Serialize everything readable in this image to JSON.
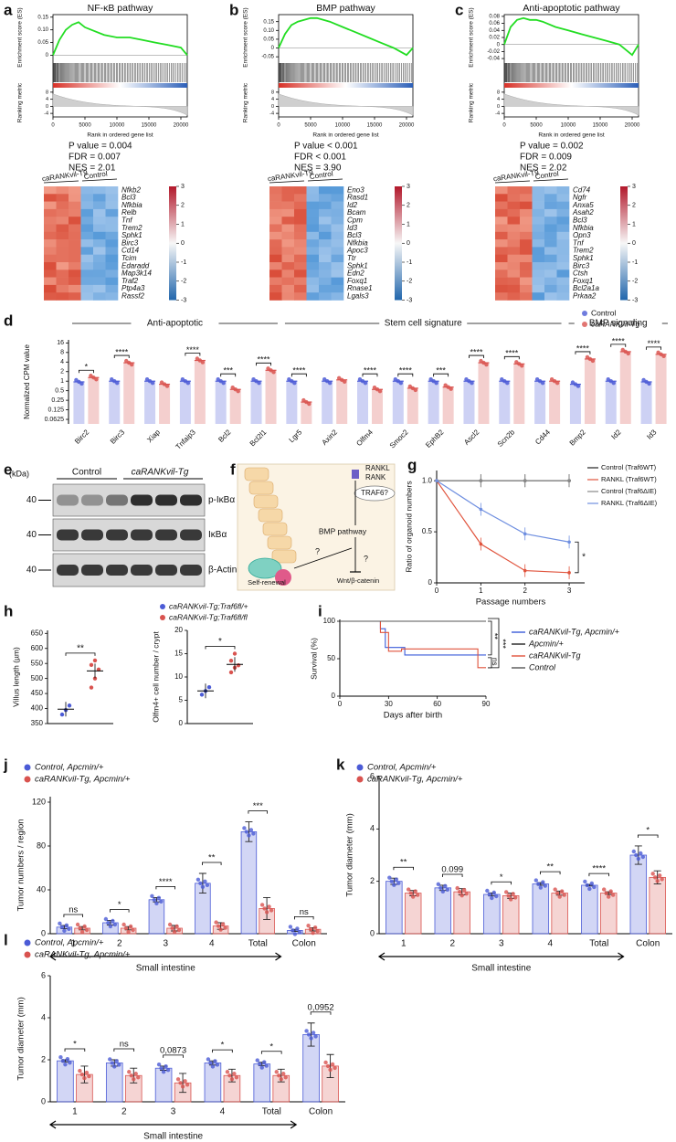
{
  "chart_data": [
    {
      "type": "gsea",
      "panel": "a",
      "title": "NF-κB pathway",
      "ylabel": "Enrichment score (ES)",
      "ylabel2": "Ranking metric",
      "xlabel": "Rank in ordered gene list",
      "x": [
        0,
        1000,
        2000,
        3000,
        4000,
        5000,
        6000,
        8000,
        10000,
        12000,
        14000,
        16000,
        18000,
        20000,
        21000
      ],
      "es": [
        0,
        0.06,
        0.1,
        0.12,
        0.13,
        0.11,
        0.1,
        0.08,
        0.07,
        0.07,
        0.06,
        0.05,
        0.04,
        0.03,
        0
      ],
      "xlim": [
        0,
        21000
      ],
      "xticks": [
        0,
        5000,
        10000,
        15000,
        20000
      ],
      "ylim": [
        -0.02,
        0.16
      ],
      "yticks": [
        0,
        0.05,
        {
          "value": 0.1,
          "label": "0.10"
        },
        0.15
      ],
      "y2lim": [
        -6,
        10
      ],
      "y2ticks": [
        8,
        4,
        0,
        -4
      ],
      "stats": [
        "P value = 0.004",
        "FDR = 0.007",
        "NES = 2.01"
      ],
      "groups": [
        "caRANKvil-T9",
        "Control"
      ],
      "genes": [
        "Nfkb2",
        "Bcl3",
        "Nfkbia",
        "Relb",
        "Tnf",
        "Trem2",
        "Sphk1",
        "Birc3",
        "Cd14",
        "Tcim",
        "Edaradd",
        "Map3k14",
        "Traf2",
        "Ptp4a3",
        "Rassf2"
      ],
      "clim": [
        -3,
        3
      ],
      "cticks": [
        3,
        2,
        1,
        0,
        -1,
        -2,
        -3
      ]
    },
    {
      "type": "gsea",
      "panel": "b",
      "title": "BMP pathway",
      "ylabel": "Enrichment score (ES)",
      "ylabel2": "Ranking metric",
      "xlabel": "Rank in ordered gene list",
      "x": [
        0,
        1000,
        2000,
        3000,
        4000,
        5000,
        6000,
        8000,
        10000,
        12000,
        14000,
        16000,
        18000,
        20000,
        21000
      ],
      "es": [
        0,
        0.08,
        0.13,
        0.15,
        0.16,
        0.17,
        0.17,
        0.15,
        0.12,
        0.09,
        0.06,
        0.03,
        0,
        -0.04,
        0
      ],
      "xlim": [
        0,
        21000
      ],
      "xticks": [
        0,
        5000,
        10000,
        15000,
        20000
      ],
      "ylim": [
        -0.07,
        0.19
      ],
      "yticks": [
        -0.05,
        0,
        0.05,
        {
          "value": 0.1,
          "label": "0.10"
        },
        0.15
      ],
      "y2lim": [
        -6,
        10
      ],
      "y2ticks": [
        8,
        4,
        0,
        -4
      ],
      "stats": [
        "P value < 0.001",
        "FDR < 0.001",
        "NES = 3.90"
      ],
      "groups": [
        "caRANKvil-T9",
        "Control"
      ],
      "genes": [
        "Eno3",
        "Rasd1",
        "Id2",
        "Bcam",
        "Cpm",
        "Id3",
        "Bcl3",
        "Nfkbia",
        "Apoc3",
        "Ttr",
        "Sphk1",
        "Edn2",
        "Foxq1",
        "Rnase1",
        "Lgals3"
      ],
      "clim": [
        -3,
        3
      ],
      "cticks": [
        3,
        2,
        1,
        0,
        -1,
        -2,
        -3
      ]
    },
    {
      "type": "gsea",
      "panel": "c",
      "title": "Anti-apoptotic pathway",
      "ylabel": "Enrichment score (ES)",
      "ylabel2": "Ranking metric",
      "xlabel": "Rank in ordered gene list",
      "x": [
        0,
        1000,
        2000,
        3000,
        4000,
        5000,
        6000,
        8000,
        10000,
        12000,
        14000,
        16000,
        18000,
        20000,
        21000
      ],
      "es": [
        0,
        0.05,
        0.07,
        0.075,
        0.07,
        0.07,
        0.065,
        0.05,
        0.04,
        0.03,
        0.02,
        0.01,
        0,
        -0.03,
        0
      ],
      "xlim": [
        0,
        21000
      ],
      "xticks": [
        0,
        5000,
        10000,
        15000,
        20000
      ],
      "ylim": [
        -0.045,
        0.085
      ],
      "yticks": [
        -0.04,
        -0.02,
        0,
        0.02,
        0.04,
        0.06,
        0.08
      ],
      "y2lim": [
        -6,
        10
      ],
      "y2ticks": [
        8,
        4,
        0,
        -4
      ],
      "stats": [
        "P value = 0.002",
        "FDR = 0.009",
        "NES = 2.02"
      ],
      "groups": [
        "caRANKvil-T9",
        "Control"
      ],
      "genes": [
        "Cd74",
        "Ngfr",
        "Anxa5",
        "Asah2",
        "Bcl3",
        "Nfkbia",
        "Opn3",
        "Tnf",
        "Trem2",
        "Sphk1",
        "Birc3",
        "Ctsh",
        "Foxq1",
        "Bcl2a1a",
        "Prkaa2"
      ],
      "clim": [
        -3,
        3
      ],
      "cticks": [
        3,
        2,
        1,
        0,
        -1,
        -2,
        -3
      ]
    },
    {
      "type": "logbar",
      "panel": "d",
      "ylabel": "Normalized CPM value",
      "log": true,
      "groups": [
        "Anti-apoptotic",
        "Stem cell signature",
        "BMP signaling"
      ],
      "categories": [
        "Birc2",
        "Birc3",
        "Xiap",
        "Tnfaip3",
        "Bcl2",
        "Bcl2l1",
        "Lgr5",
        "Axin2",
        "Olfm4",
        "Smoc2",
        "EphB2",
        "Ascl2",
        "Scn2b",
        "Cd44",
        "Bmp2",
        "Id2",
        "Id3"
      ],
      "series": [
        {
          "name": "Control",
          "color": "#4b5bd6",
          "values": [
            0.95,
            1,
            1,
            1,
            1,
            1,
            1,
            1,
            1,
            1,
            1,
            1,
            1,
            1,
            0.8,
            1,
            0.95
          ]
        },
        {
          "name": "caRANKvil-Tg",
          "color": "#d9534f",
          "values": [
            1.3,
            3.8,
            0.8,
            4.5,
            0.55,
            2.2,
            0.22,
            1.1,
            0.55,
            0.6,
            0.65,
            3.8,
            3.5,
            1,
            5,
            8.5,
            7
          ]
        }
      ],
      "significance": [
        "*",
        "****",
        null,
        "****",
        "***",
        "****",
        "****",
        null,
        "****",
        "****",
        "***",
        "****",
        "****",
        null,
        "****",
        "****",
        "****"
      ],
      "ylim": [
        0.045,
        20
      ],
      "yticks": [
        0.0625,
        0.125,
        0.25,
        0.5,
        1,
        2,
        4,
        8,
        16
      ]
    },
    {
      "type": "line",
      "panel": "g",
      "xlabel": "Passage numbers",
      "ylabel": "Ratio of organoid numbers",
      "x": [
        0,
        1,
        2,
        3
      ],
      "xlim": [
        0,
        3.35
      ],
      "xticks": [
        0,
        1,
        2,
        3
      ],
      "ylim": [
        0,
        1.1
      ],
      "yticks": [
        0,
        0.5,
        {
          "value": 1,
          "label": "1.0"
        }
      ],
      "series": [
        {
          "name": "Control (Traf6WT)",
          "color": "#222222",
          "values": [
            1,
            1,
            1,
            1
          ]
        },
        {
          "name": "RANKL (Traf6WT)",
          "color": "#e0533c",
          "values": [
            1,
            0.38,
            0.12,
            0.1
          ]
        },
        {
          "name": "Control (Traf6ΔIE)",
          "color": "#888888",
          "values": [
            1,
            1,
            1,
            1
          ]
        },
        {
          "name": "RANKL (Traf6ΔIE)",
          "color": "#6f8fe0",
          "values": [
            1,
            0.72,
            0.48,
            0.4
          ]
        }
      ],
      "annotation": "*"
    },
    {
      "type": "dot",
      "panel": "h",
      "ylabel": "Villus length (µm)",
      "ylim": [
        350,
        660
      ],
      "yticks": [
        350,
        400,
        450,
        500,
        550,
        600,
        650
      ],
      "series": [
        {
          "name": "caRANKvil-Tg;Traf6fl/+",
          "color": "#4b5bd6",
          "values": [
            380,
            395,
            410
          ],
          "mean": 398
        },
        {
          "name": "caRANKvil-Tg;Traf6fl/fl",
          "color": "#d9534f",
          "values": [
            470,
            500,
            530,
            545,
            560
          ],
          "mean": 525
        }
      ],
      "annotation": "**"
    },
    {
      "type": "dot",
      "ylabel": "Olfm4+ cell number / crypt",
      "ylim": [
        0,
        20
      ],
      "yticks": [
        0,
        5,
        10,
        15,
        20
      ],
      "series": [
        {
          "color": "#4b5bd6",
          "values": [
            6.2,
            7,
            7.8
          ],
          "mean": 7
        },
        {
          "color": "#d9534f",
          "values": [
            11,
            12,
            12.5,
            13.5,
            15
          ],
          "mean": 12.7
        }
      ],
      "annotation": "*"
    },
    {
      "type": "step",
      "panel": "i",
      "xlabel": "Days after birth",
      "ylabel": "Survival (%)",
      "xlim": [
        0,
        90
      ],
      "xticks": [
        0,
        30,
        60,
        90
      ],
      "ylim": [
        0,
        100
      ],
      "yticks": [
        0,
        50,
        100
      ],
      "series": [
        {
          "name": "caRANKvil-Tg, Apcmin/+",
          "color": "#3a5bd9",
          "x": [
            0,
            25,
            28,
            40,
            90
          ],
          "y": [
            100,
            90,
            65,
            55,
            55
          ]
        },
        {
          "name": "Apcmin/+",
          "color": "#222222",
          "x": [
            0,
            90
          ],
          "y": [
            100,
            100
          ]
        },
        {
          "name": "caRANKvil-Tg",
          "color": "#e0533c",
          "x": [
            0,
            25,
            30,
            38,
            85,
            90
          ],
          "y": [
            100,
            85,
            60,
            63,
            38,
            38
          ]
        },
        {
          "name": "Control",
          "color": "#555555",
          "x": [
            0,
            90
          ],
          "y": [
            100,
            100
          ]
        }
      ],
      "annotations": [
        "**",
        "***",
        "ns"
      ]
    },
    {
      "type": "bar",
      "panel": "j",
      "ylabel": "Tumor numbers / region",
      "xlabel": "Small intestine",
      "categories": [
        "1",
        "2",
        "3",
        "4",
        "Total",
        "Colon"
      ],
      "ylim": [
        0,
        125
      ],
      "yticks": [
        0,
        40,
        80,
        120
      ],
      "series": [
        {
          "name": "Control, Apcmin/+",
          "color": "#4b5bd6",
          "values": [
            6,
            10,
            31,
            46,
            93,
            3
          ],
          "errors": [
            1.5,
            2,
            2,
            9,
            9,
            1
          ]
        },
        {
          "name": "caRANKvil-Tg, Apcmin/+",
          "color": "#d9534f",
          "values": [
            5,
            5,
            5,
            7,
            23,
            4
          ],
          "errors": [
            1.5,
            1.5,
            2.5,
            3,
            10,
            1.5
          ]
        }
      ],
      "significance": [
        "ns",
        "*",
        "****",
        "**",
        "***",
        "ns"
      ]
    },
    {
      "type": "bar",
      "panel": "k",
      "ylabel": "Tumor diameter (mm)",
      "xlabel": "Small intestine",
      "categories": [
        "1",
        "2",
        "3",
        "4",
        "Total",
        "Colon"
      ],
      "ylim": [
        0,
        6
      ],
      "yticks": [
        0,
        2,
        4,
        6
      ],
      "series": [
        {
          "name": "Control, Apcmin/+",
          "color": "#4b5bd6",
          "values": [
            2,
            1.75,
            1.5,
            1.9,
            1.85,
            3
          ],
          "errors": [
            0.12,
            0.1,
            0.06,
            0.05,
            0.03,
            0.35
          ]
        },
        {
          "name": "caRANKvil-Tg, Apcmin/+",
          "color": "#d9534f",
          "values": [
            1.55,
            1.6,
            1.45,
            1.55,
            1.55,
            2.15
          ],
          "errors": [
            0.1,
            0.12,
            0.1,
            0.08,
            0.05,
            0.25
          ]
        }
      ],
      "significance": [
        "**",
        "0.099",
        "*",
        "**",
        "****",
        "*"
      ]
    },
    {
      "type": "bar",
      "panel": "l",
      "ylabel": "Tumor diameter (mm)",
      "xlabel": "Small intestine",
      "categories": [
        "1",
        "2",
        "3",
        "4",
        "Total",
        "Colon"
      ],
      "ylim": [
        0,
        6
      ],
      "yticks": [
        0,
        2,
        4,
        6
      ],
      "series": [
        {
          "name": "Control, Apcmin/+",
          "color": "#4b5bd6",
          "values": [
            1.95,
            1.85,
            1.6,
            1.85,
            1.8,
            3.2
          ],
          "errors": [
            0.05,
            0.15,
            0.1,
            0.1,
            0.08,
            0.55
          ]
        },
        {
          "name": "caRANKvil-Tg, Apcmin/+",
          "color": "#d9534f",
          "values": [
            1.3,
            1.25,
            0.9,
            1.25,
            1.25,
            1.7
          ],
          "errors": [
            0.4,
            0.35,
            0.45,
            0.3,
            0.3,
            0.55
          ]
        }
      ],
      "significance": [
        "*",
        "ns",
        "0,0873",
        "*",
        "*",
        "0,0952"
      ]
    }
  ],
  "blot": {
    "panel": "e",
    "unit": "(kDa)",
    "groups": [
      "Control",
      "caRANKvil-Tg"
    ],
    "sizes": [
      "40",
      "40",
      "40"
    ],
    "proteins": [
      "p-IκBα",
      "IκBα",
      "β-Actin"
    ]
  },
  "diagram": {
    "panel": "f",
    "ligand": "RANKL",
    "receptor": "RANK",
    "adaptor": "TRAF6?",
    "pathway": "BMP pathway",
    "outcome": "Self-renewal",
    "wnt": "Wnt/β-catenin",
    "unknowns": [
      "?",
      "?"
    ]
  }
}
